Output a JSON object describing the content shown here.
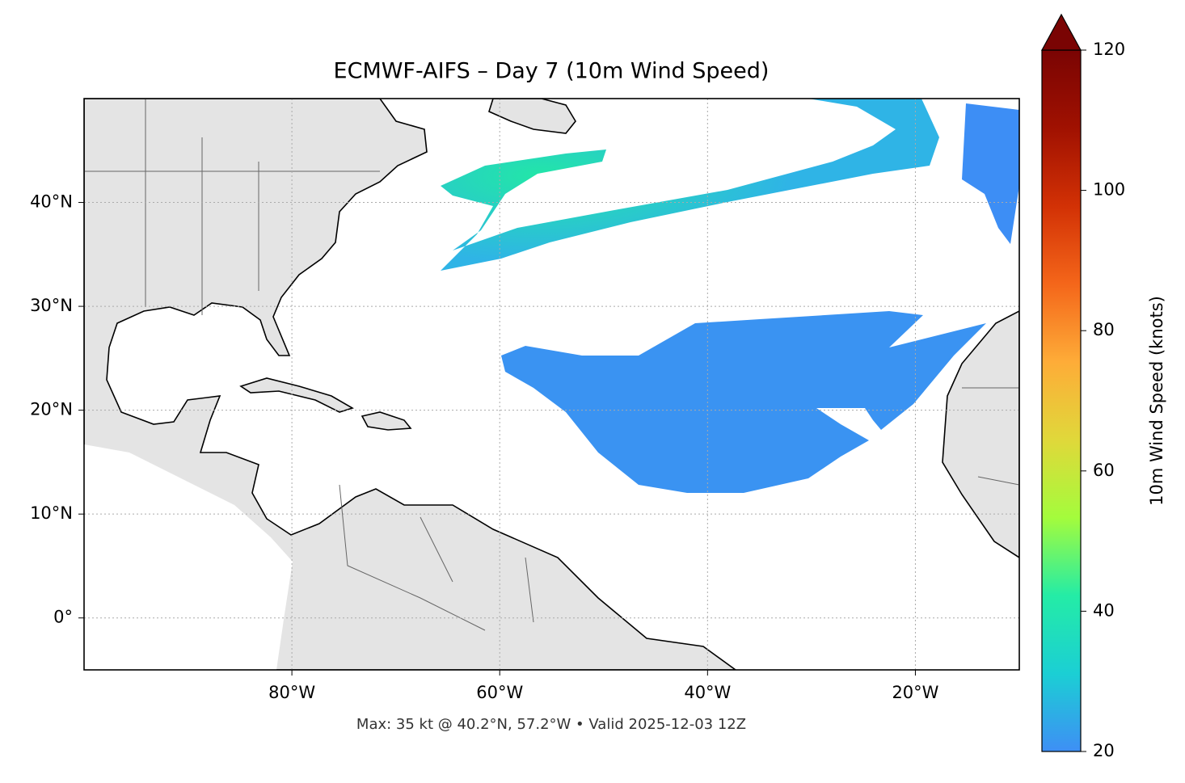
{
  "chart_data": {
    "type": "map",
    "title": "ECMWF-AIFS – Day 7 (10m Wind Speed)",
    "caption": "Max: 35 kt @ 40.2°N, 57.2°W • Valid 2025-12-03 12Z",
    "xlim": [
      -100,
      -10
    ],
    "ylim": [
      -5,
      50
    ],
    "xticks": [
      {
        "value": -80,
        "label": "80°W"
      },
      {
        "value": -60,
        "label": "60°W"
      },
      {
        "value": -40,
        "label": "40°W"
      },
      {
        "value": -20,
        "label": "20°W"
      }
    ],
    "yticks": [
      {
        "value": 0,
        "label": "0°"
      },
      {
        "value": 10,
        "label": "10°N"
      },
      {
        "value": 20,
        "label": "20°N"
      },
      {
        "value": 30,
        "label": "30°N"
      },
      {
        "value": 40,
        "label": "40°N"
      }
    ],
    "grid": true,
    "colorbar": {
      "label": "10m Wind Speed (knots)",
      "lim": [
        20,
        120
      ],
      "ticks": [
        20,
        40,
        60,
        80,
        100,
        120
      ],
      "colors": [
        "#3e8ff5",
        "#1bcfd4",
        "#24eca6",
        "#a4fc3c",
        "#e0d83a",
        "#feac38",
        "#f4661a",
        "#d23105",
        "#a01101",
        "#7a0403"
      ]
    }
  }
}
